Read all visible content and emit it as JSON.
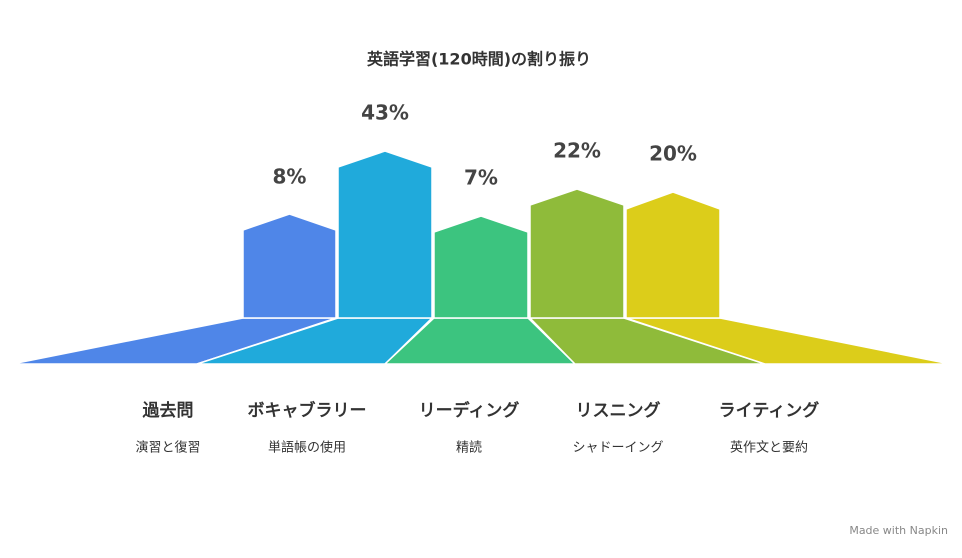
{
  "header": {
    "title": "英語学習(120時間)の割り振り"
  },
  "items": [
    {
      "percent": "8%",
      "title": "過去問",
      "subtitle": "演習と復習"
    },
    {
      "percent": "43%",
      "title": "ボキャブラリー",
      "subtitle": "単語帳の使用"
    },
    {
      "percent": "7%",
      "title": "リーディング",
      "subtitle": "精読"
    },
    {
      "percent": "22%",
      "title": "リスニング",
      "subtitle": "シャドーイング"
    },
    {
      "percent": "20%",
      "title": "ライティング",
      "subtitle": "英作文と要約"
    }
  ],
  "footer": {
    "credit": "Made with Napkin"
  }
}
